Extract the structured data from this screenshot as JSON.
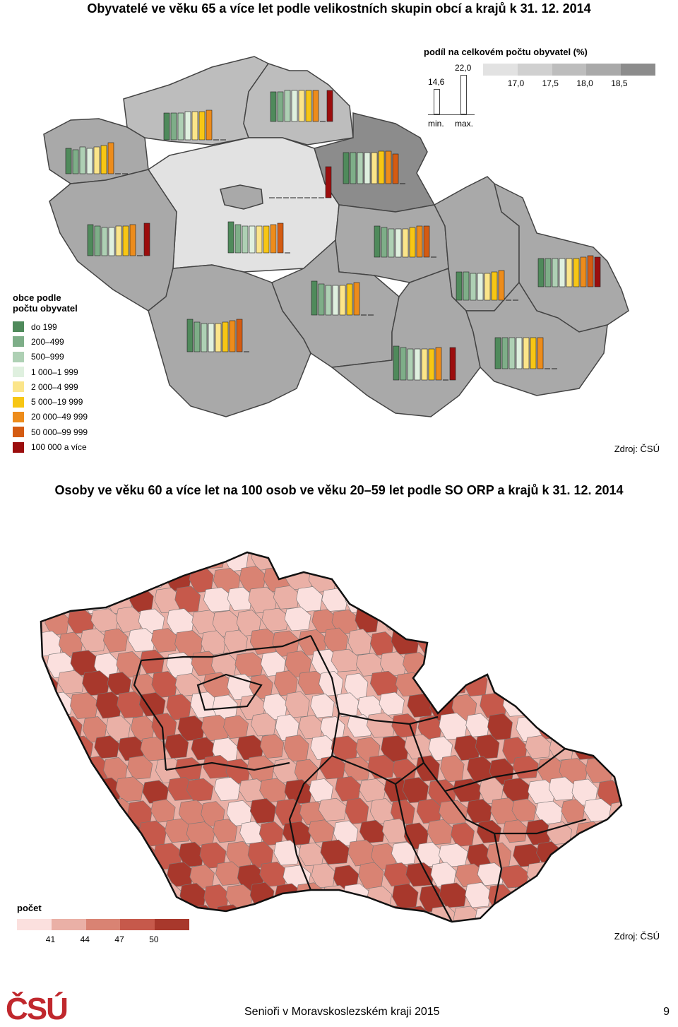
{
  "map1": {
    "title": "Obyvatelé ve věku 65 a více let podle velikostních skupin obcí a krajů k 31. 12. 2014",
    "share_legend": {
      "title": "podíl na celkovém počtu obyvatel (%)",
      "classes": [
        "17,0",
        "17,5",
        "18,0",
        "18,5"
      ],
      "colors": [
        "#e2e2e2",
        "#d0d0d0",
        "#bdbdbd",
        "#a9a9a9",
        "#8c8c8c"
      ]
    },
    "bar_scale": {
      "min_value": "14,6",
      "max_value": "22,0",
      "min_label": "min.",
      "max_label": "max."
    },
    "size_legend": {
      "title_line1": "obce podle",
      "title_line2": "počtu obyvatel",
      "items": [
        {
          "label": "do 199",
          "color": "#4f8a5b"
        },
        {
          "label": "200–499",
          "color": "#7eae88"
        },
        {
          "label": "500–999",
          "color": "#aed0b4"
        },
        {
          "label": "1 000–1 999",
          "color": "#dff0df"
        },
        {
          "label": "2 000–4 999",
          "color": "#fbe58a"
        },
        {
          "label": "5 000–19 999",
          "color": "#f7c614"
        },
        {
          "label": "20 000–49 999",
          "color": "#ed8c1b"
        },
        {
          "label": "50 000–99 999",
          "color": "#d45b12"
        },
        {
          "label": "100 000 a více",
          "color": "#9b0d0d"
        }
      ]
    },
    "source": "Zdroj: ČSÚ"
  },
  "map2": {
    "title": "Osoby ve věku 60 a více let na 100 osob ve věku 20–59 let podle SO ORP a krajů k 31. 12. 2014",
    "legend": {
      "title": "počet",
      "ticks": [
        "41",
        "44",
        "47",
        "50"
      ],
      "colors": [
        "#fbe0de",
        "#eab0a6",
        "#d98373",
        "#c6594b",
        "#a8382c"
      ]
    },
    "source": "Zdroj: ČSÚ"
  },
  "footer": {
    "logo": "ČSÚ",
    "text": "Senioři v Moravskoslezském kraji 2015",
    "page": "9"
  }
}
